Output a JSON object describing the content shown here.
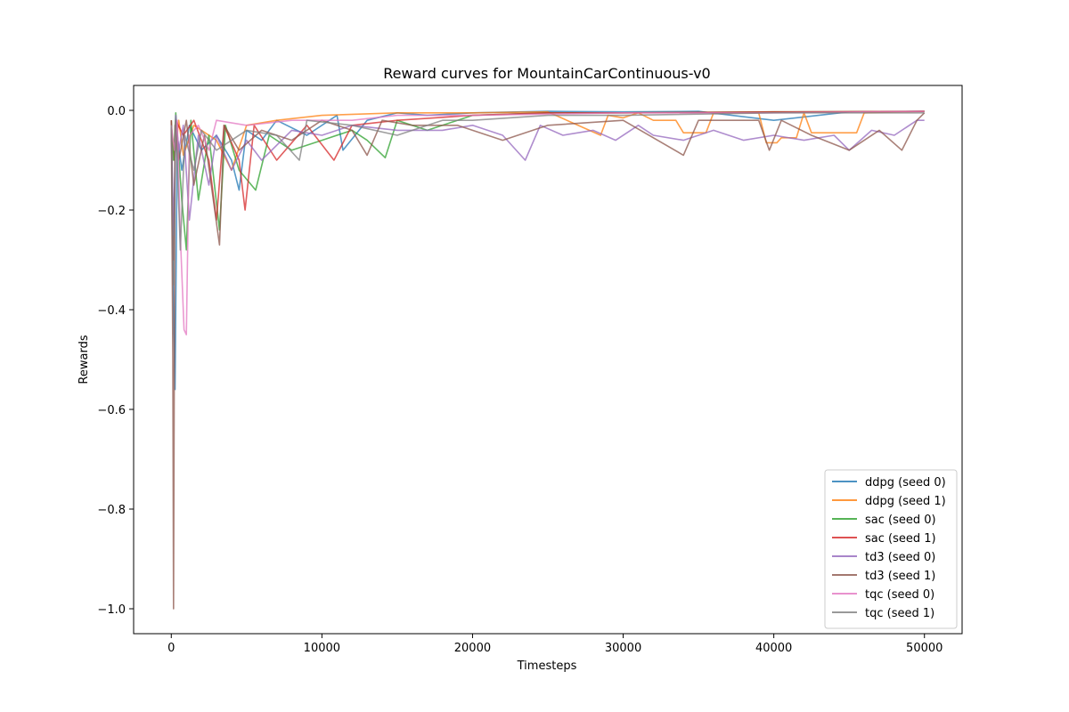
{
  "chart_data": {
    "type": "line",
    "title": "Reward curves for MountainCarContinuous-v0",
    "xlabel": "Timesteps",
    "ylabel": "Rewards",
    "xlim": [
      -2500,
      52500
    ],
    "ylim": [
      -1.05,
      0.05
    ],
    "xticks": [
      0,
      10000,
      20000,
      30000,
      40000,
      50000
    ],
    "xtick_labels": [
      "0",
      "10000",
      "20000",
      "30000",
      "40000",
      "50000"
    ],
    "yticks": [
      0.0,
      -0.2,
      -0.4,
      -0.6,
      -0.8,
      -1.0
    ],
    "ytick_labels": [
      "0.0",
      "−0.2",
      "−0.4",
      "−0.6",
      "−0.8",
      "−1.0"
    ],
    "grid": false,
    "legend_position": "lower-right",
    "series": [
      {
        "name": "ddpg (seed 0)",
        "color": "#1f77b4",
        "points": [
          [
            0,
            -0.03
          ],
          [
            150,
            -0.4
          ],
          [
            250,
            -0.56
          ],
          [
            400,
            -0.05
          ],
          [
            700,
            -0.12
          ],
          [
            1200,
            -0.03
          ],
          [
            2000,
            -0.08
          ],
          [
            3000,
            -0.05
          ],
          [
            4000,
            -0.1
          ],
          [
            4500,
            -0.16
          ],
          [
            5000,
            -0.04
          ],
          [
            6000,
            -0.06
          ],
          [
            7000,
            -0.02
          ],
          [
            9000,
            -0.05
          ],
          [
            11000,
            -0.01
          ],
          [
            11400,
            -0.08
          ],
          [
            13000,
            -0.02
          ],
          [
            15000,
            -0.005
          ],
          [
            17000,
            -0.01
          ],
          [
            20000,
            -0.005
          ],
          [
            25000,
            -0.002
          ],
          [
            30000,
            -0.003
          ],
          [
            35000,
            -0.002
          ],
          [
            40000,
            -0.02
          ],
          [
            45000,
            -0.003
          ],
          [
            50000,
            -0.002
          ]
        ]
      },
      {
        "name": "ddpg (seed 1)",
        "color": "#ff7f0e",
        "points": [
          [
            0,
            -0.03
          ],
          [
            200,
            -0.1
          ],
          [
            500,
            -0.02
          ],
          [
            800,
            -0.09
          ],
          [
            1500,
            -0.03
          ],
          [
            3000,
            -0.06
          ],
          [
            4000,
            -0.12
          ],
          [
            5000,
            -0.03
          ],
          [
            7000,
            -0.02
          ],
          [
            10000,
            -0.01
          ],
          [
            15000,
            -0.005
          ],
          [
            20000,
            -0.005
          ],
          [
            25000,
            -0.003
          ],
          [
            28500,
            -0.05
          ],
          [
            29000,
            -0.01
          ],
          [
            30000,
            -0.015
          ],
          [
            31000,
            -0.005
          ],
          [
            32000,
            -0.02
          ],
          [
            33500,
            -0.02
          ],
          [
            34000,
            -0.045
          ],
          [
            35500,
            -0.045
          ],
          [
            36000,
            -0.005
          ],
          [
            39000,
            -0.005
          ],
          [
            39500,
            -0.065
          ],
          [
            40200,
            -0.065
          ],
          [
            40500,
            -0.055
          ],
          [
            41500,
            -0.055
          ],
          [
            42000,
            -0.005
          ],
          [
            42500,
            -0.045
          ],
          [
            45500,
            -0.045
          ],
          [
            46000,
            -0.005
          ],
          [
            50000,
            -0.002
          ]
        ]
      },
      {
        "name": "sac (seed 0)",
        "color": "#2ca02c",
        "points": [
          [
            0,
            -0.02
          ],
          [
            150,
            -0.1
          ],
          [
            300,
            -0.005
          ],
          [
            700,
            -0.18
          ],
          [
            1000,
            -0.28
          ],
          [
            1300,
            -0.02
          ],
          [
            1800,
            -0.18
          ],
          [
            2500,
            -0.05
          ],
          [
            3200,
            -0.24
          ],
          [
            3600,
            -0.03
          ],
          [
            4500,
            -0.12
          ],
          [
            5600,
            -0.16
          ],
          [
            6500,
            -0.05
          ],
          [
            8000,
            -0.08
          ],
          [
            10000,
            -0.06
          ],
          [
            12000,
            -0.04
          ],
          [
            13000,
            -0.06
          ],
          [
            14200,
            -0.095
          ],
          [
            15000,
            -0.02
          ],
          [
            17000,
            -0.04
          ],
          [
            20000,
            -0.01
          ],
          [
            25000,
            -0.005
          ],
          [
            30000,
            -0.005
          ],
          [
            40000,
            -0.003
          ],
          [
            50000,
            -0.002
          ]
        ]
      },
      {
        "name": "sac (seed 1)",
        "color": "#d62728",
        "points": [
          [
            0,
            -0.02
          ],
          [
            150,
            -0.3
          ],
          [
            300,
            -0.02
          ],
          [
            800,
            -0.05
          ],
          [
            1500,
            -0.02
          ],
          [
            2500,
            -0.1
          ],
          [
            3000,
            -0.22
          ],
          [
            3500,
            -0.03
          ],
          [
            4500,
            -0.1
          ],
          [
            4900,
            -0.2
          ],
          [
            5500,
            -0.03
          ],
          [
            7000,
            -0.1
          ],
          [
            9000,
            -0.03
          ],
          [
            10800,
            -0.1
          ],
          [
            12000,
            -0.03
          ],
          [
            15000,
            -0.02
          ],
          [
            20000,
            -0.01
          ],
          [
            25000,
            -0.005
          ],
          [
            30000,
            -0.005
          ],
          [
            40000,
            -0.003
          ],
          [
            50000,
            -0.002
          ]
        ]
      },
      {
        "name": "td3 (seed 0)",
        "color": "#9467bd",
        "points": [
          [
            0,
            -0.03
          ],
          [
            150,
            -0.25
          ],
          [
            300,
            -0.01
          ],
          [
            500,
            -0.08
          ],
          [
            800,
            -0.03
          ],
          [
            1200,
            -0.22
          ],
          [
            1800,
            -0.05
          ],
          [
            2500,
            -0.15
          ],
          [
            3000,
            -0.05
          ],
          [
            4000,
            -0.12
          ],
          [
            5000,
            -0.06
          ],
          [
            6000,
            -0.1
          ],
          [
            8000,
            -0.04
          ],
          [
            10000,
            -0.05
          ],
          [
            12000,
            -0.03
          ],
          [
            15000,
            -0.04
          ],
          [
            18000,
            -0.04
          ],
          [
            20000,
            -0.03
          ],
          [
            22000,
            -0.05
          ],
          [
            23500,
            -0.1
          ],
          [
            24500,
            -0.03
          ],
          [
            26000,
            -0.05
          ],
          [
            28000,
            -0.04
          ],
          [
            29500,
            -0.06
          ],
          [
            31000,
            -0.03
          ],
          [
            32000,
            -0.05
          ],
          [
            34000,
            -0.06
          ],
          [
            36000,
            -0.04
          ],
          [
            38000,
            -0.06
          ],
          [
            40000,
            -0.05
          ],
          [
            42000,
            -0.06
          ],
          [
            44000,
            -0.05
          ],
          [
            45000,
            -0.08
          ],
          [
            46500,
            -0.04
          ],
          [
            48000,
            -0.05
          ],
          [
            49500,
            -0.02
          ],
          [
            50000,
            -0.02
          ]
        ]
      },
      {
        "name": "td3 (seed 1)",
        "color": "#8c564b",
        "points": [
          [
            0,
            -0.02
          ],
          [
            100,
            -0.5
          ],
          [
            150,
            -1.0
          ],
          [
            250,
            -0.03
          ],
          [
            500,
            -0.1
          ],
          [
            1000,
            -0.02
          ],
          [
            1500,
            -0.15
          ],
          [
            2200,
            -0.05
          ],
          [
            3200,
            -0.27
          ],
          [
            3500,
            -0.03
          ],
          [
            4500,
            -0.08
          ],
          [
            6000,
            -0.04
          ],
          [
            8000,
            -0.06
          ],
          [
            10000,
            -0.02
          ],
          [
            12000,
            -0.04
          ],
          [
            13000,
            -0.09
          ],
          [
            14000,
            -0.02
          ],
          [
            16000,
            -0.03
          ],
          [
            19000,
            -0.03
          ],
          [
            22000,
            -0.06
          ],
          [
            25000,
            -0.03
          ],
          [
            30000,
            -0.02
          ],
          [
            34000,
            -0.09
          ],
          [
            35000,
            -0.02
          ],
          [
            39000,
            -0.02
          ],
          [
            39700,
            -0.08
          ],
          [
            40500,
            -0.02
          ],
          [
            42500,
            -0.05
          ],
          [
            45000,
            -0.08
          ],
          [
            47000,
            -0.04
          ],
          [
            48500,
            -0.08
          ],
          [
            49500,
            -0.02
          ],
          [
            50000,
            -0.005
          ]
        ]
      },
      {
        "name": "tqc (seed 0)",
        "color": "#e377c2",
        "points": [
          [
            0,
            -0.03
          ],
          [
            200,
            -0.08
          ],
          [
            400,
            -0.02
          ],
          [
            600,
            -0.25
          ],
          [
            850,
            -0.44
          ],
          [
            1000,
            -0.45
          ],
          [
            1200,
            -0.05
          ],
          [
            1800,
            -0.03
          ],
          [
            2500,
            -0.08
          ],
          [
            3000,
            -0.02
          ],
          [
            5000,
            -0.03
          ],
          [
            8000,
            -0.02
          ],
          [
            12000,
            -0.02
          ],
          [
            15000,
            -0.01
          ],
          [
            20000,
            -0.01
          ],
          [
            30000,
            -0.005
          ],
          [
            40000,
            -0.005
          ],
          [
            50000,
            -0.002
          ]
        ]
      },
      {
        "name": "tqc (seed 1)",
        "color": "#7f7f7f",
        "points": [
          [
            0,
            -0.03
          ],
          [
            150,
            -0.35
          ],
          [
            300,
            -0.02
          ],
          [
            600,
            -0.28
          ],
          [
            900,
            -0.05
          ],
          [
            1500,
            -0.12
          ],
          [
            2000,
            -0.04
          ],
          [
            3000,
            -0.08
          ],
          [
            5000,
            -0.04
          ],
          [
            7000,
            -0.05
          ],
          [
            8500,
            -0.1
          ],
          [
            9000,
            -0.02
          ],
          [
            12000,
            -0.03
          ],
          [
            15000,
            -0.05
          ],
          [
            18000,
            -0.02
          ],
          [
            20000,
            -0.02
          ],
          [
            25000,
            -0.01
          ],
          [
            30000,
            -0.01
          ],
          [
            40000,
            -0.005
          ],
          [
            50000,
            -0.005
          ]
        ]
      }
    ]
  }
}
